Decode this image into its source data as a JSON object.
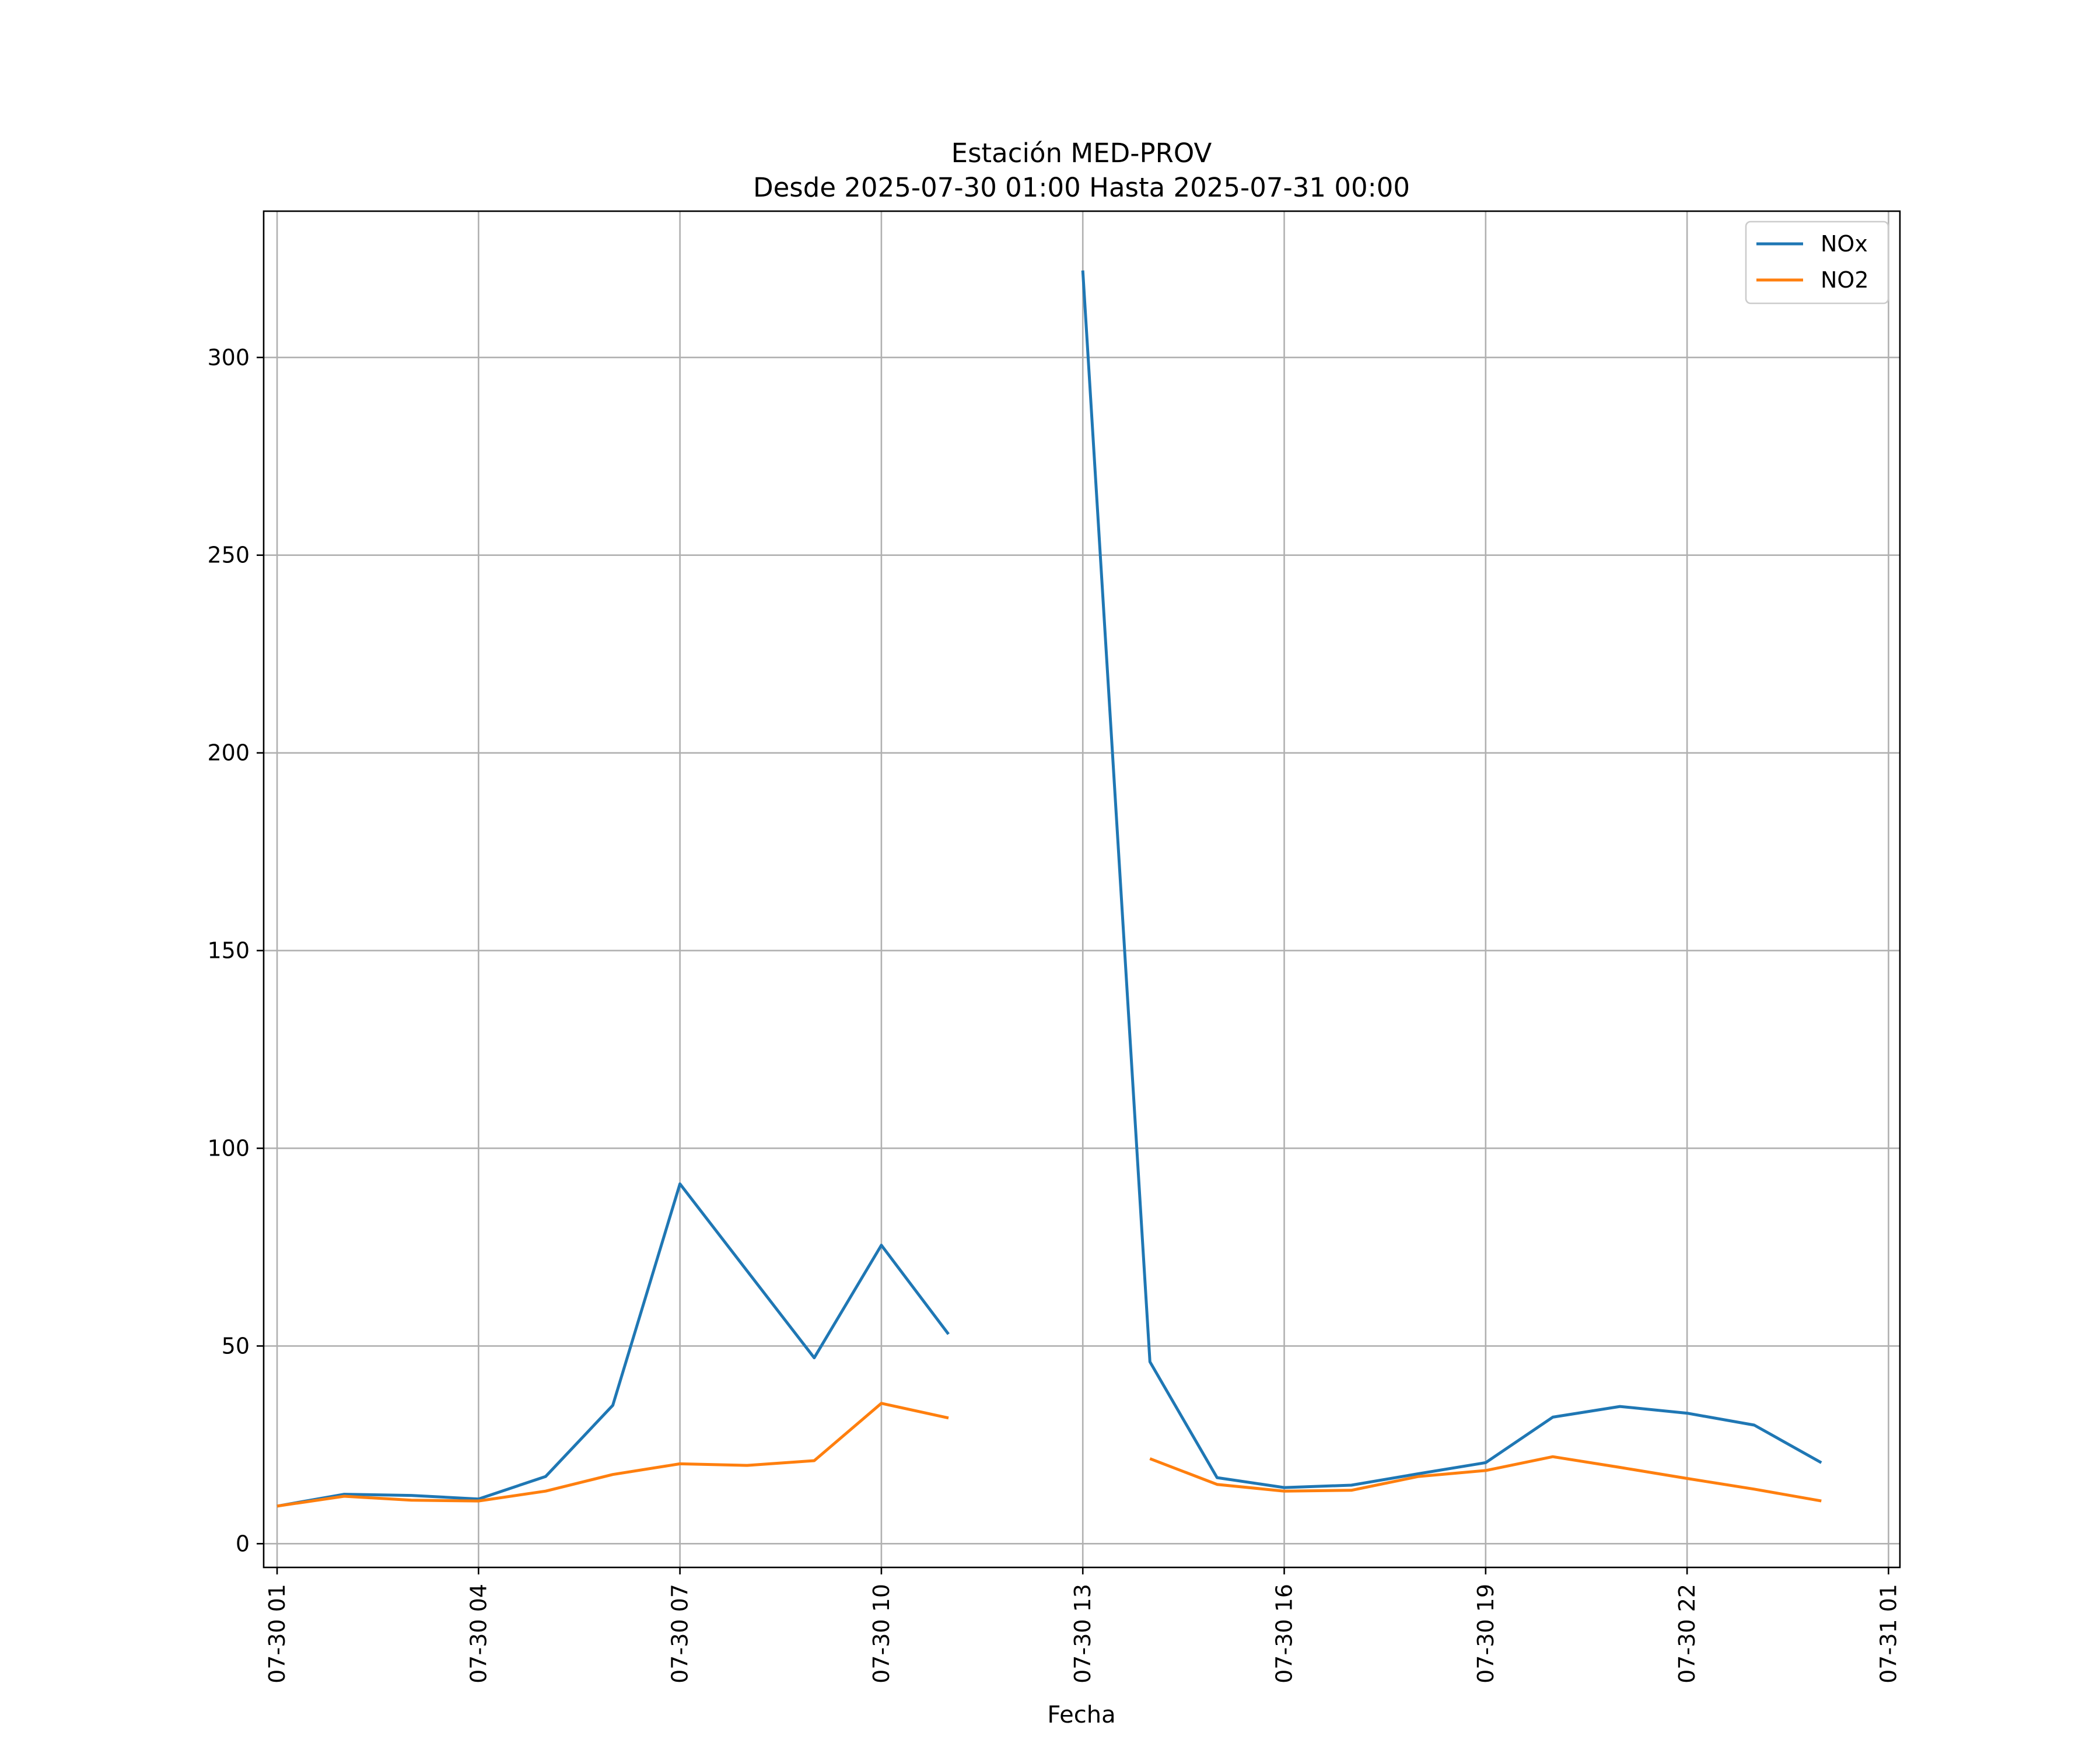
{
  "chart_data": {
    "type": "line",
    "title": "Estación MED-PROV",
    "subtitle": "Desde 2025-07-30 01:00 Hasta 2025-07-31 00:00",
    "xlabel": "Fecha",
    "ylabel": "",
    "x": [
      "07-30 01",
      "07-30 02",
      "07-30 03",
      "07-30 04",
      "07-30 05",
      "07-30 06",
      "07-30 07",
      "07-30 08",
      "07-30 09",
      "07-30 10",
      "07-30 11",
      "07-30 12",
      "07-30 13",
      "07-30 14",
      "07-30 15",
      "07-30 16",
      "07-30 17",
      "07-30 18",
      "07-30 19",
      "07-30 20",
      "07-30 21",
      "07-30 22",
      "07-30 23",
      "07-31 00"
    ],
    "xlim": [
      "07-30 00",
      "07-31 01"
    ],
    "ylim": [
      -6,
      337
    ],
    "x_ticks": [
      "07-30 01",
      "07-30 04",
      "07-30 07",
      "07-30 10",
      "07-30 13",
      "07-30 16",
      "07-30 19",
      "07-30 22",
      "07-31 01"
    ],
    "y_ticks": [
      0,
      50,
      100,
      150,
      200,
      250,
      300
    ],
    "grid": true,
    "legend_position": "top-right",
    "series": [
      {
        "name": "NOx",
        "color": "#1f77b4",
        "values": [
          9.5,
          12.5,
          12.2,
          11.3,
          17.0,
          35.0,
          91.0,
          69.0,
          47.0,
          75.5,
          53.0,
          null,
          322.0,
          46.0,
          16.7,
          14.2,
          14.8,
          17.7,
          20.5,
          32.0,
          34.7,
          33.0,
          30.0,
          20.5
        ]
      },
      {
        "name": "NO2",
        "color": "#ff7f0e",
        "values": [
          9.5,
          12.0,
          11.0,
          10.8,
          13.3,
          17.5,
          20.2,
          19.8,
          21.0,
          35.5,
          31.8,
          null,
          null,
          21.5,
          15.0,
          13.3,
          13.5,
          17.0,
          18.5,
          22.0,
          19.3,
          16.5,
          13.8,
          10.8
        ]
      }
    ]
  }
}
